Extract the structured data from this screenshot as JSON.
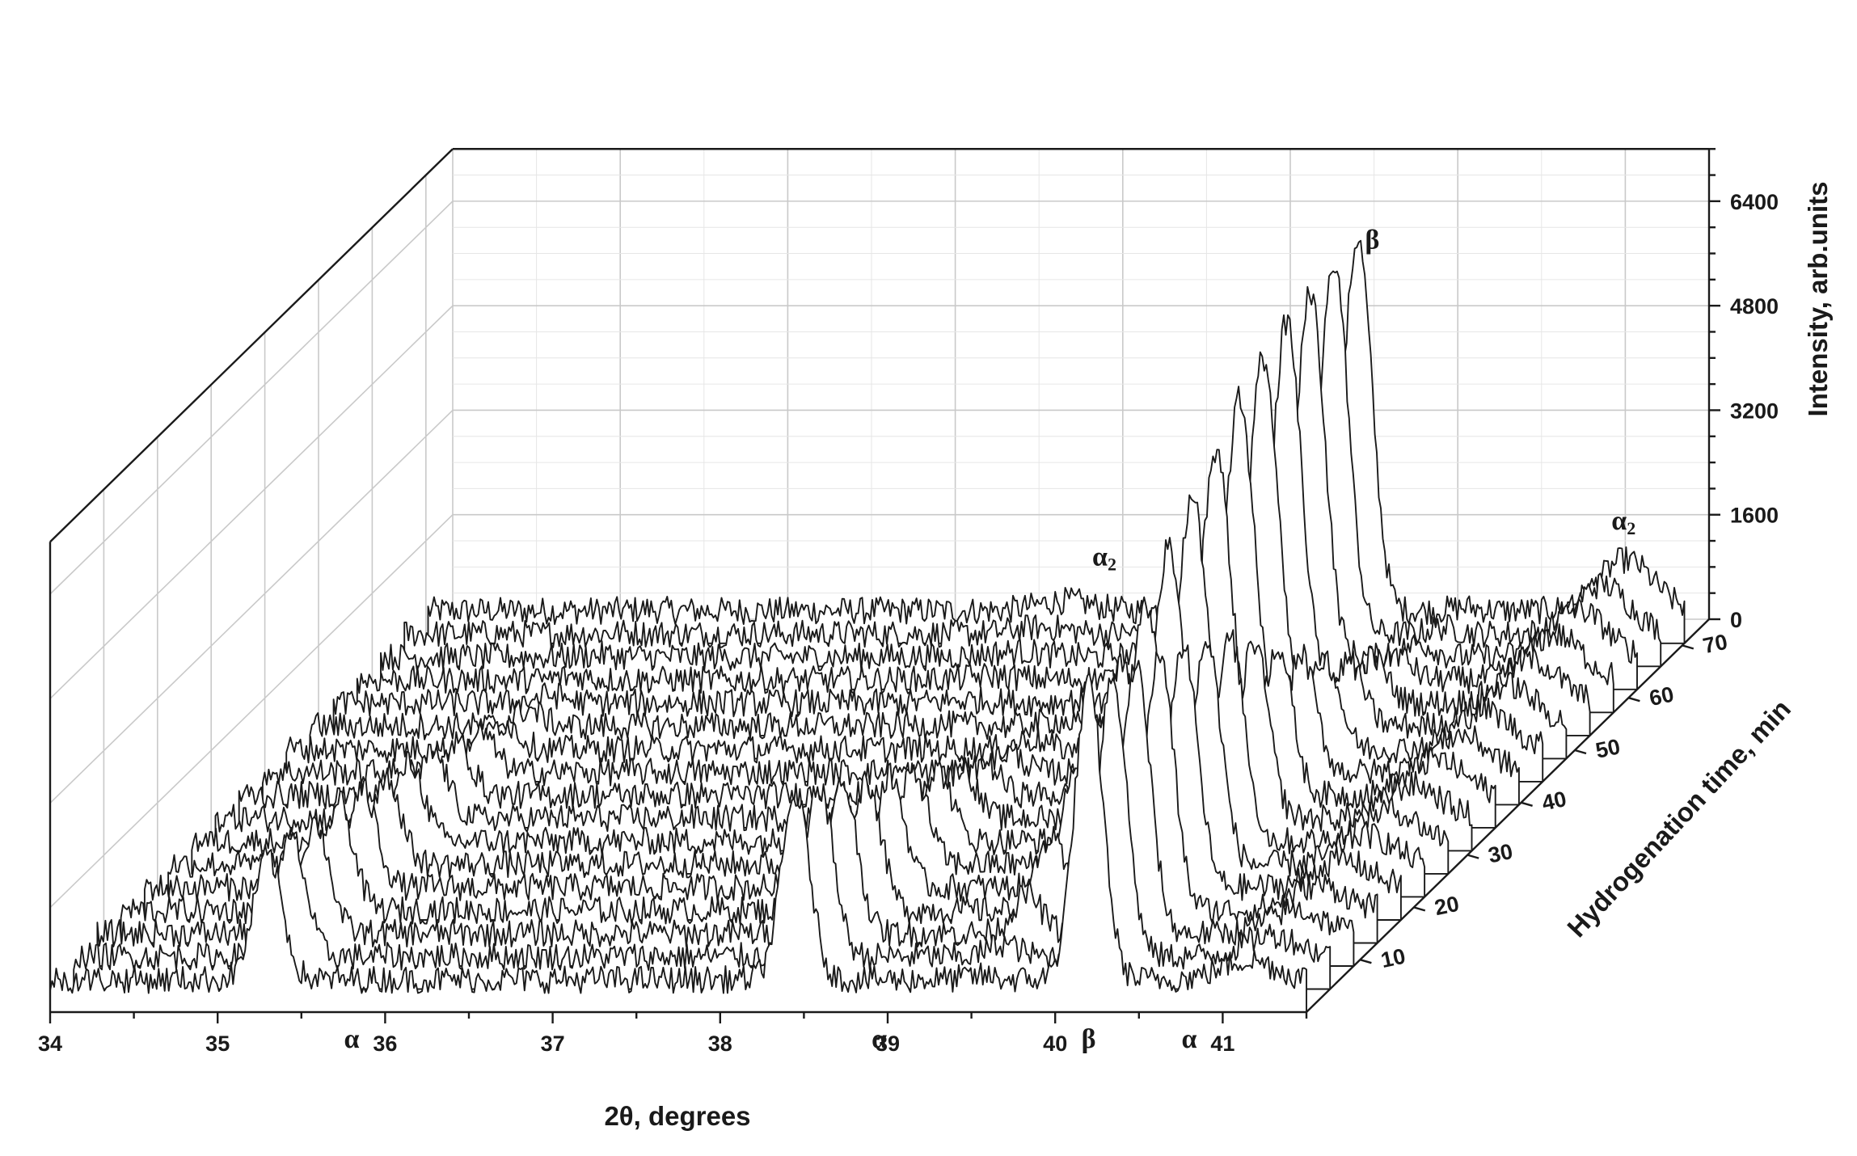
{
  "chart_data": {
    "type": "waterfall-3d-line",
    "xlabel": "2θ, degrees",
    "ylabel": "Hydrogenation time, min",
    "zlabel": "Intensity, arb.units",
    "x_range": [
      34,
      41.5
    ],
    "x_ticks": [
      "34",
      "35",
      "36",
      "37",
      "38",
      "39",
      "40",
      "41"
    ],
    "y_range": [
      0,
      75
    ],
    "y_ticks": [
      "10",
      "20",
      "30",
      "40",
      "50",
      "60",
      "70"
    ],
    "z_range": [
      0,
      7200
    ],
    "z_ticks": [
      "0",
      "1600",
      "3200",
      "4800",
      "6400"
    ],
    "grid": true,
    "series_count": 17,
    "time_step_min": 4.4,
    "baseline_intensity": 500,
    "peaks": [
      {
        "phase": "α",
        "two_theta": 35.3,
        "heights_first_to_last": [
          1900,
          1800,
          1700,
          1650,
          1500,
          1350,
          1200,
          1000,
          800,
          600,
          400,
          250,
          120,
          60,
          30,
          20,
          20
        ]
      },
      {
        "phase": "α",
        "two_theta": 38.45,
        "heights_first_to_last": [
          2800,
          2600,
          2300,
          2000,
          1700,
          1400,
          1100,
          800,
          500,
          300,
          150,
          80,
          40,
          30,
          20,
          20,
          20
        ]
      },
      {
        "phase": "α",
        "two_theta": 40.2,
        "heights_first_to_last": [
          4500,
          4300,
          4100,
          3900,
          3700,
          3400,
          3100,
          2700,
          2300,
          1800,
          1400,
          1000,
          700,
          400,
          200,
          100,
          50
        ]
      },
      {
        "phase": "β",
        "two_theta": 39.55,
        "heights_first_to_last": [
          50,
          200,
          600,
          1100,
          1700,
          2200,
          2800,
          3300,
          3800,
          4200,
          4600,
          5000,
          5300,
          5500,
          5600,
          5700,
          5700
        ]
      },
      {
        "phase": "α2",
        "two_theta": 41.15,
        "heights_first_to_last": [
          300,
          330,
          360,
          390,
          420,
          450,
          480,
          510,
          540,
          570,
          600,
          630,
          660,
          690,
          720,
          750,
          780
        ]
      },
      {
        "phase": "α2",
        "two_theta": 37.8,
        "heights_first_to_last": [
          0,
          0,
          0,
          0,
          0,
          0,
          0,
          0,
          0,
          0,
          0,
          20,
          40,
          60,
          80,
          100,
          150
        ]
      }
    ],
    "annotations": [
      {
        "text": "α",
        "two_theta": 35.8,
        "time": 0
      },
      {
        "text": "α",
        "two_theta": 38.95,
        "time": 0
      },
      {
        "text": "β",
        "two_theta": 40.2,
        "time": 0
      },
      {
        "text": "α",
        "two_theta": 40.8,
        "time": 0
      },
      {
        "text": "β",
        "two_theta": 39.65,
        "time": 70
      },
      {
        "text": "α",
        "sub": "2",
        "two_theta": 38.05,
        "time": 70
      },
      {
        "text": "α",
        "sub": "2",
        "two_theta": 41.15,
        "time": 70
      }
    ]
  }
}
